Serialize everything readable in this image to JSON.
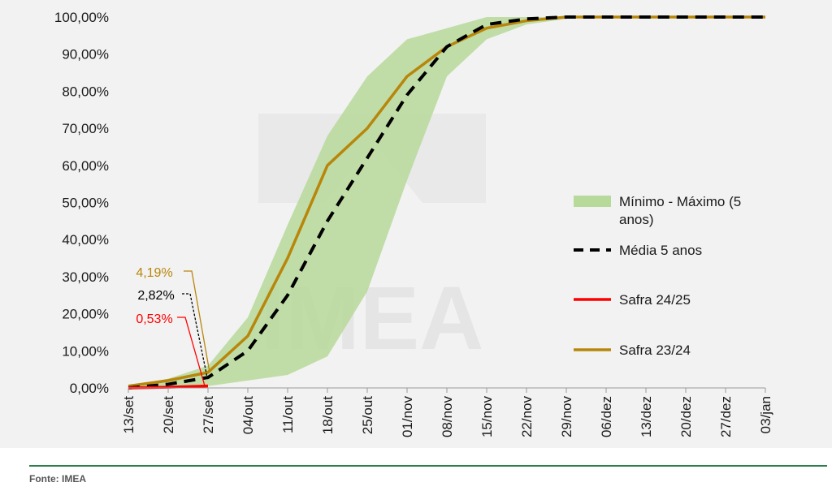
{
  "chart_data": {
    "type": "line",
    "title": "",
    "xlabel": "",
    "ylabel": "",
    "ylim": [
      0,
      100
    ],
    "yticks": [
      "0,00%",
      "10,00%",
      "20,00%",
      "30,00%",
      "40,00%",
      "50,00%",
      "60,00%",
      "70,00%",
      "80,00%",
      "90,00%",
      "100,00%"
    ],
    "categories": [
      "13/set",
      "20/set",
      "27/set",
      "04/out",
      "11/out",
      "18/out",
      "25/out",
      "01/nov",
      "08/nov",
      "15/nov",
      "22/nov",
      "29/nov",
      "06/dez",
      "13/dez",
      "20/dez",
      "27/dez",
      "03/jan"
    ],
    "band": {
      "name": "Mínimo - Máximo (5 anos)",
      "min": [
        0,
        0,
        0.5,
        2,
        3.5,
        8.5,
        26,
        56,
        84,
        94,
        98,
        99.5,
        100,
        100,
        100,
        100,
        100
      ],
      "max": [
        0.5,
        2.5,
        6,
        19,
        44,
        68,
        84,
        94,
        97,
        100,
        100,
        100,
        100,
        100,
        100,
        100,
        100
      ]
    },
    "series": [
      {
        "name": "Média 5 anos",
        "style": "dashed",
        "color": "#000000",
        "values": [
          0,
          1,
          2.82,
          10,
          25,
          45,
          62,
          79,
          92,
          98,
          99.5,
          100,
          100,
          100,
          100,
          100,
          100
        ]
      },
      {
        "name": "Safra 24/25",
        "style": "solid",
        "color": "#ff0000",
        "values": [
          0,
          0.2,
          0.53,
          null,
          null,
          null,
          null,
          null,
          null,
          null,
          null,
          null,
          null,
          null,
          null,
          null,
          null
        ]
      },
      {
        "name": "Safra 23/24",
        "style": "solid",
        "color": "#b8860b",
        "values": [
          0.5,
          2,
          4.19,
          14,
          35,
          60,
          70,
          84,
          92,
          97,
          99,
          100,
          100,
          100,
          100,
          100,
          100
        ]
      }
    ],
    "annotations": [
      {
        "text": "4,19%",
        "series": "Safra 23/24",
        "color": "#b8860b"
      },
      {
        "text": "2,82%",
        "series": "Média 5 anos",
        "color": "#000000"
      },
      {
        "text": "0,53%",
        "series": "Safra 24/25",
        "color": "#ff0000"
      }
    ],
    "legend_position": "right",
    "legend_lines": [
      [
        "Mínimo - Máximo (5",
        "anos)"
      ],
      [
        "Média 5 anos"
      ],
      [
        "Safra 24/25"
      ],
      [
        "Safra 23/24"
      ]
    ],
    "band_color": "#b7d99a",
    "watermark": "IMEA"
  },
  "footer": {
    "source": "Fonte: IMEA"
  }
}
